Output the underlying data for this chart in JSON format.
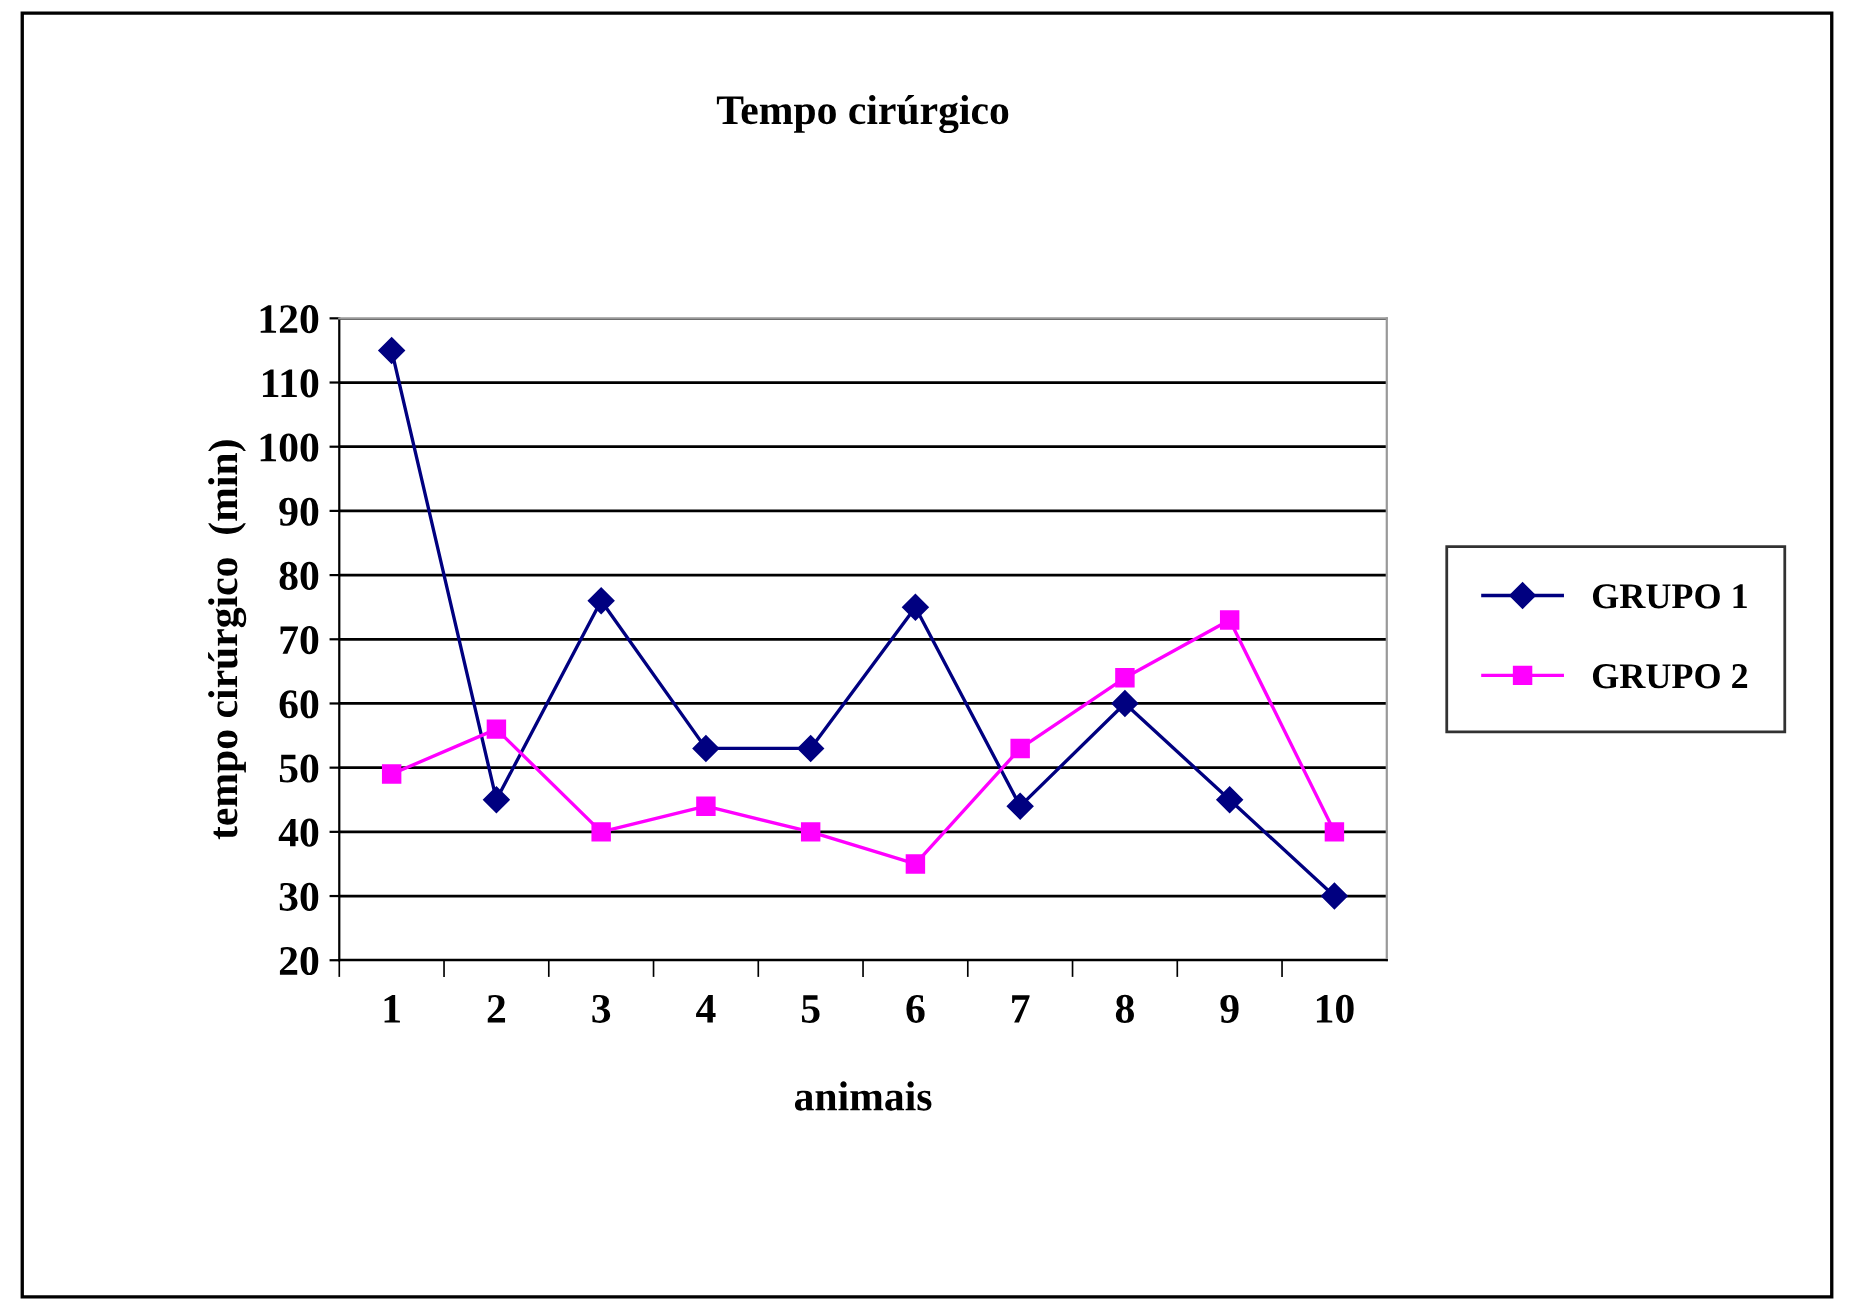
{
  "chart_data": {
    "type": "line",
    "title": "Tempo cirúrgico",
    "xlabel": "animais",
    "ylabel": "tempo cirúrgico  (min)",
    "categories": [
      "1",
      "2",
      "3",
      "4",
      "5",
      "6",
      "7",
      "8",
      "9",
      "10"
    ],
    "series": [
      {
        "name": "GRUPO 1",
        "color": "#000080",
        "marker": "diamond",
        "values": [
          115,
          45,
          76,
          53,
          53,
          75,
          44,
          60,
          45,
          30
        ]
      },
      {
        "name": "GRUPO 2",
        "color": "#ff00ff",
        "marker": "square",
        "values": [
          49,
          56,
          40,
          44,
          40,
          35,
          53,
          64,
          73,
          40
        ]
      }
    ],
    "ylim": [
      20,
      120
    ],
    "yticks": [
      20,
      30,
      40,
      50,
      60,
      70,
      80,
      90,
      100,
      110,
      120
    ],
    "grid": "y",
    "legend": "right"
  }
}
